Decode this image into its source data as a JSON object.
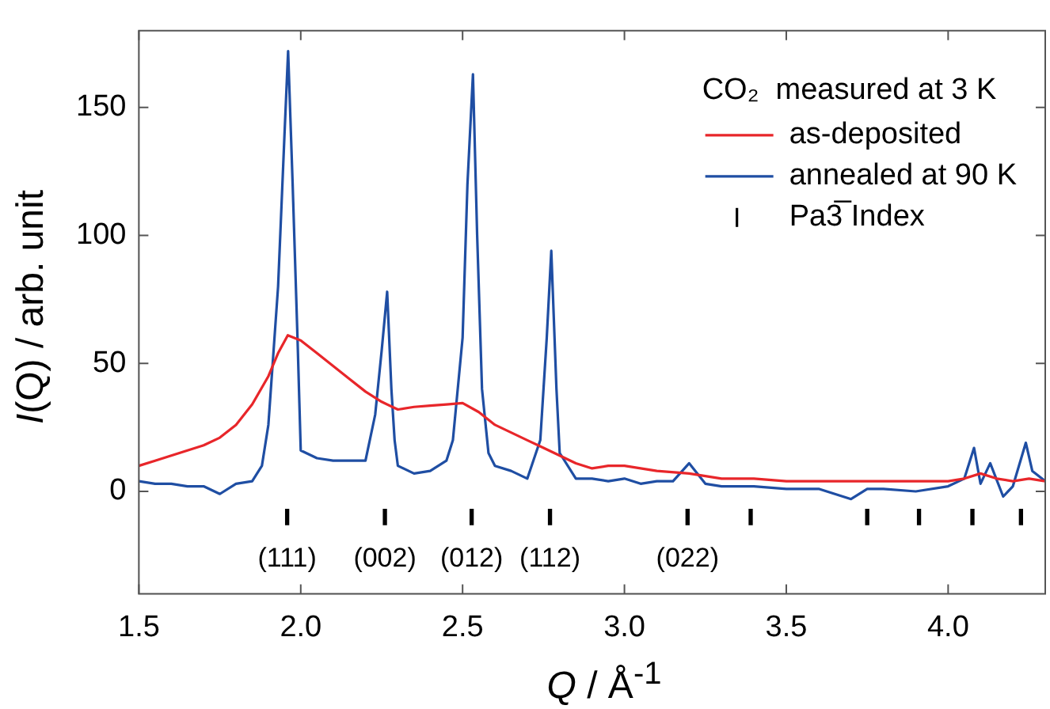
{
  "chart_data": {
    "type": "line",
    "xlabel": "Q / Å$^{-1}$",
    "ylabel": "I(Q) / arb. unit",
    "legend_title": "CO₂  measured at 3 K",
    "legend": "top right",
    "grid": false,
    "line_style": "solid",
    "xlim": [
      1.5,
      4.3
    ],
    "xticks": [
      {
        "value": 1.5,
        "label": "1.5"
      },
      {
        "value": 2,
        "label": "2.0"
      },
      {
        "value": 2.5,
        "label": "2.5"
      },
      {
        "value": 3,
        "label": "3.0"
      },
      {
        "value": 3.5,
        "label": "3.5"
      },
      {
        "value": 4,
        "label": "4.0"
      }
    ],
    "ylim": [
      -40,
      180
    ],
    "yticks": [
      0,
      50,
      100,
      150
    ],
    "series": [
      {
        "name": "as-deposited",
        "color": "#e8262a",
        "x": [
          1.5,
          1.55,
          1.6,
          1.65,
          1.7,
          1.75,
          1.8,
          1.85,
          1.9,
          1.93,
          1.96,
          1.98,
          2.0,
          2.05,
          2.1,
          2.15,
          2.2,
          2.25,
          2.3,
          2.35,
          2.4,
          2.45,
          2.5,
          2.55,
          2.6,
          2.65,
          2.7,
          2.75,
          2.8,
          2.85,
          2.9,
          2.95,
          3.0,
          3.1,
          3.2,
          3.3,
          3.4,
          3.5,
          3.6,
          3.7,
          3.8,
          3.9,
          4.0,
          4.05,
          4.1,
          4.15,
          4.2,
          4.25,
          4.3
        ],
        "values": [
          10,
          12,
          14,
          16,
          18,
          21,
          26,
          34,
          45,
          54,
          61,
          60,
          59,
          54,
          49,
          44,
          39,
          35,
          32,
          33,
          33.5,
          34,
          34.5,
          31,
          26,
          23,
          20,
          17,
          14,
          11,
          9,
          10,
          10,
          8,
          7,
          5,
          5,
          4,
          4,
          4,
          4,
          4,
          4,
          5,
          7,
          5,
          4,
          5,
          4
        ]
      },
      {
        "name": "annealed at 90 K",
        "color": "#1f4ea3",
        "x": [
          1.5,
          1.55,
          1.6,
          1.65,
          1.7,
          1.75,
          1.8,
          1.85,
          1.88,
          1.9,
          1.93,
          1.95,
          1.961,
          1.975,
          1.99,
          2.0,
          2.05,
          2.1,
          2.15,
          2.2,
          2.23,
          2.25,
          2.267,
          2.28,
          2.29,
          2.3,
          2.35,
          2.4,
          2.45,
          2.47,
          2.5,
          2.515,
          2.532,
          2.545,
          2.56,
          2.58,
          2.6,
          2.65,
          2.7,
          2.74,
          2.76,
          2.774,
          2.79,
          2.8,
          2.85,
          2.9,
          2.95,
          3.0,
          3.05,
          3.1,
          3.15,
          3.2,
          3.25,
          3.3,
          3.4,
          3.5,
          3.6,
          3.7,
          3.75,
          3.8,
          3.9,
          4.0,
          4.05,
          4.08,
          4.1,
          4.13,
          4.17,
          4.2,
          4.24,
          4.26,
          4.3
        ],
        "values": [
          4,
          3,
          3,
          2,
          2,
          -1,
          3,
          4,
          10,
          26,
          80,
          140,
          172,
          120,
          60,
          16,
          13,
          12,
          12,
          12,
          30,
          55,
          78,
          40,
          20,
          10,
          7,
          8,
          12,
          20,
          60,
          120,
          163,
          100,
          40,
          15,
          10,
          8,
          5,
          20,
          60,
          94,
          40,
          15,
          5,
          5,
          4,
          5,
          3,
          4,
          4,
          11,
          3,
          2,
          2,
          1,
          1,
          -3,
          1,
          1,
          0,
          2,
          5,
          17,
          3,
          11,
          -2,
          2,
          19,
          8,
          4
        ]
      },
      {
        "name": "Pa3̅ Index",
        "type": "bar",
        "color": "#000000",
        "x": [
          1.958,
          2.26,
          2.528,
          2.77,
          3.195,
          3.39,
          3.75,
          3.91,
          4.075,
          4.225
        ],
        "base": [
          -13,
          -13,
          -13,
          -13,
          -13,
          -13,
          -13,
          -13,
          -13,
          -13
        ],
        "values": [
          6,
          6,
          6,
          6,
          6,
          6,
          6,
          6,
          6,
          6
        ]
      }
    ],
    "annotations": [
      "(111)",
      "(002)",
      "(012)",
      "(112)",
      "(022)"
    ]
  }
}
